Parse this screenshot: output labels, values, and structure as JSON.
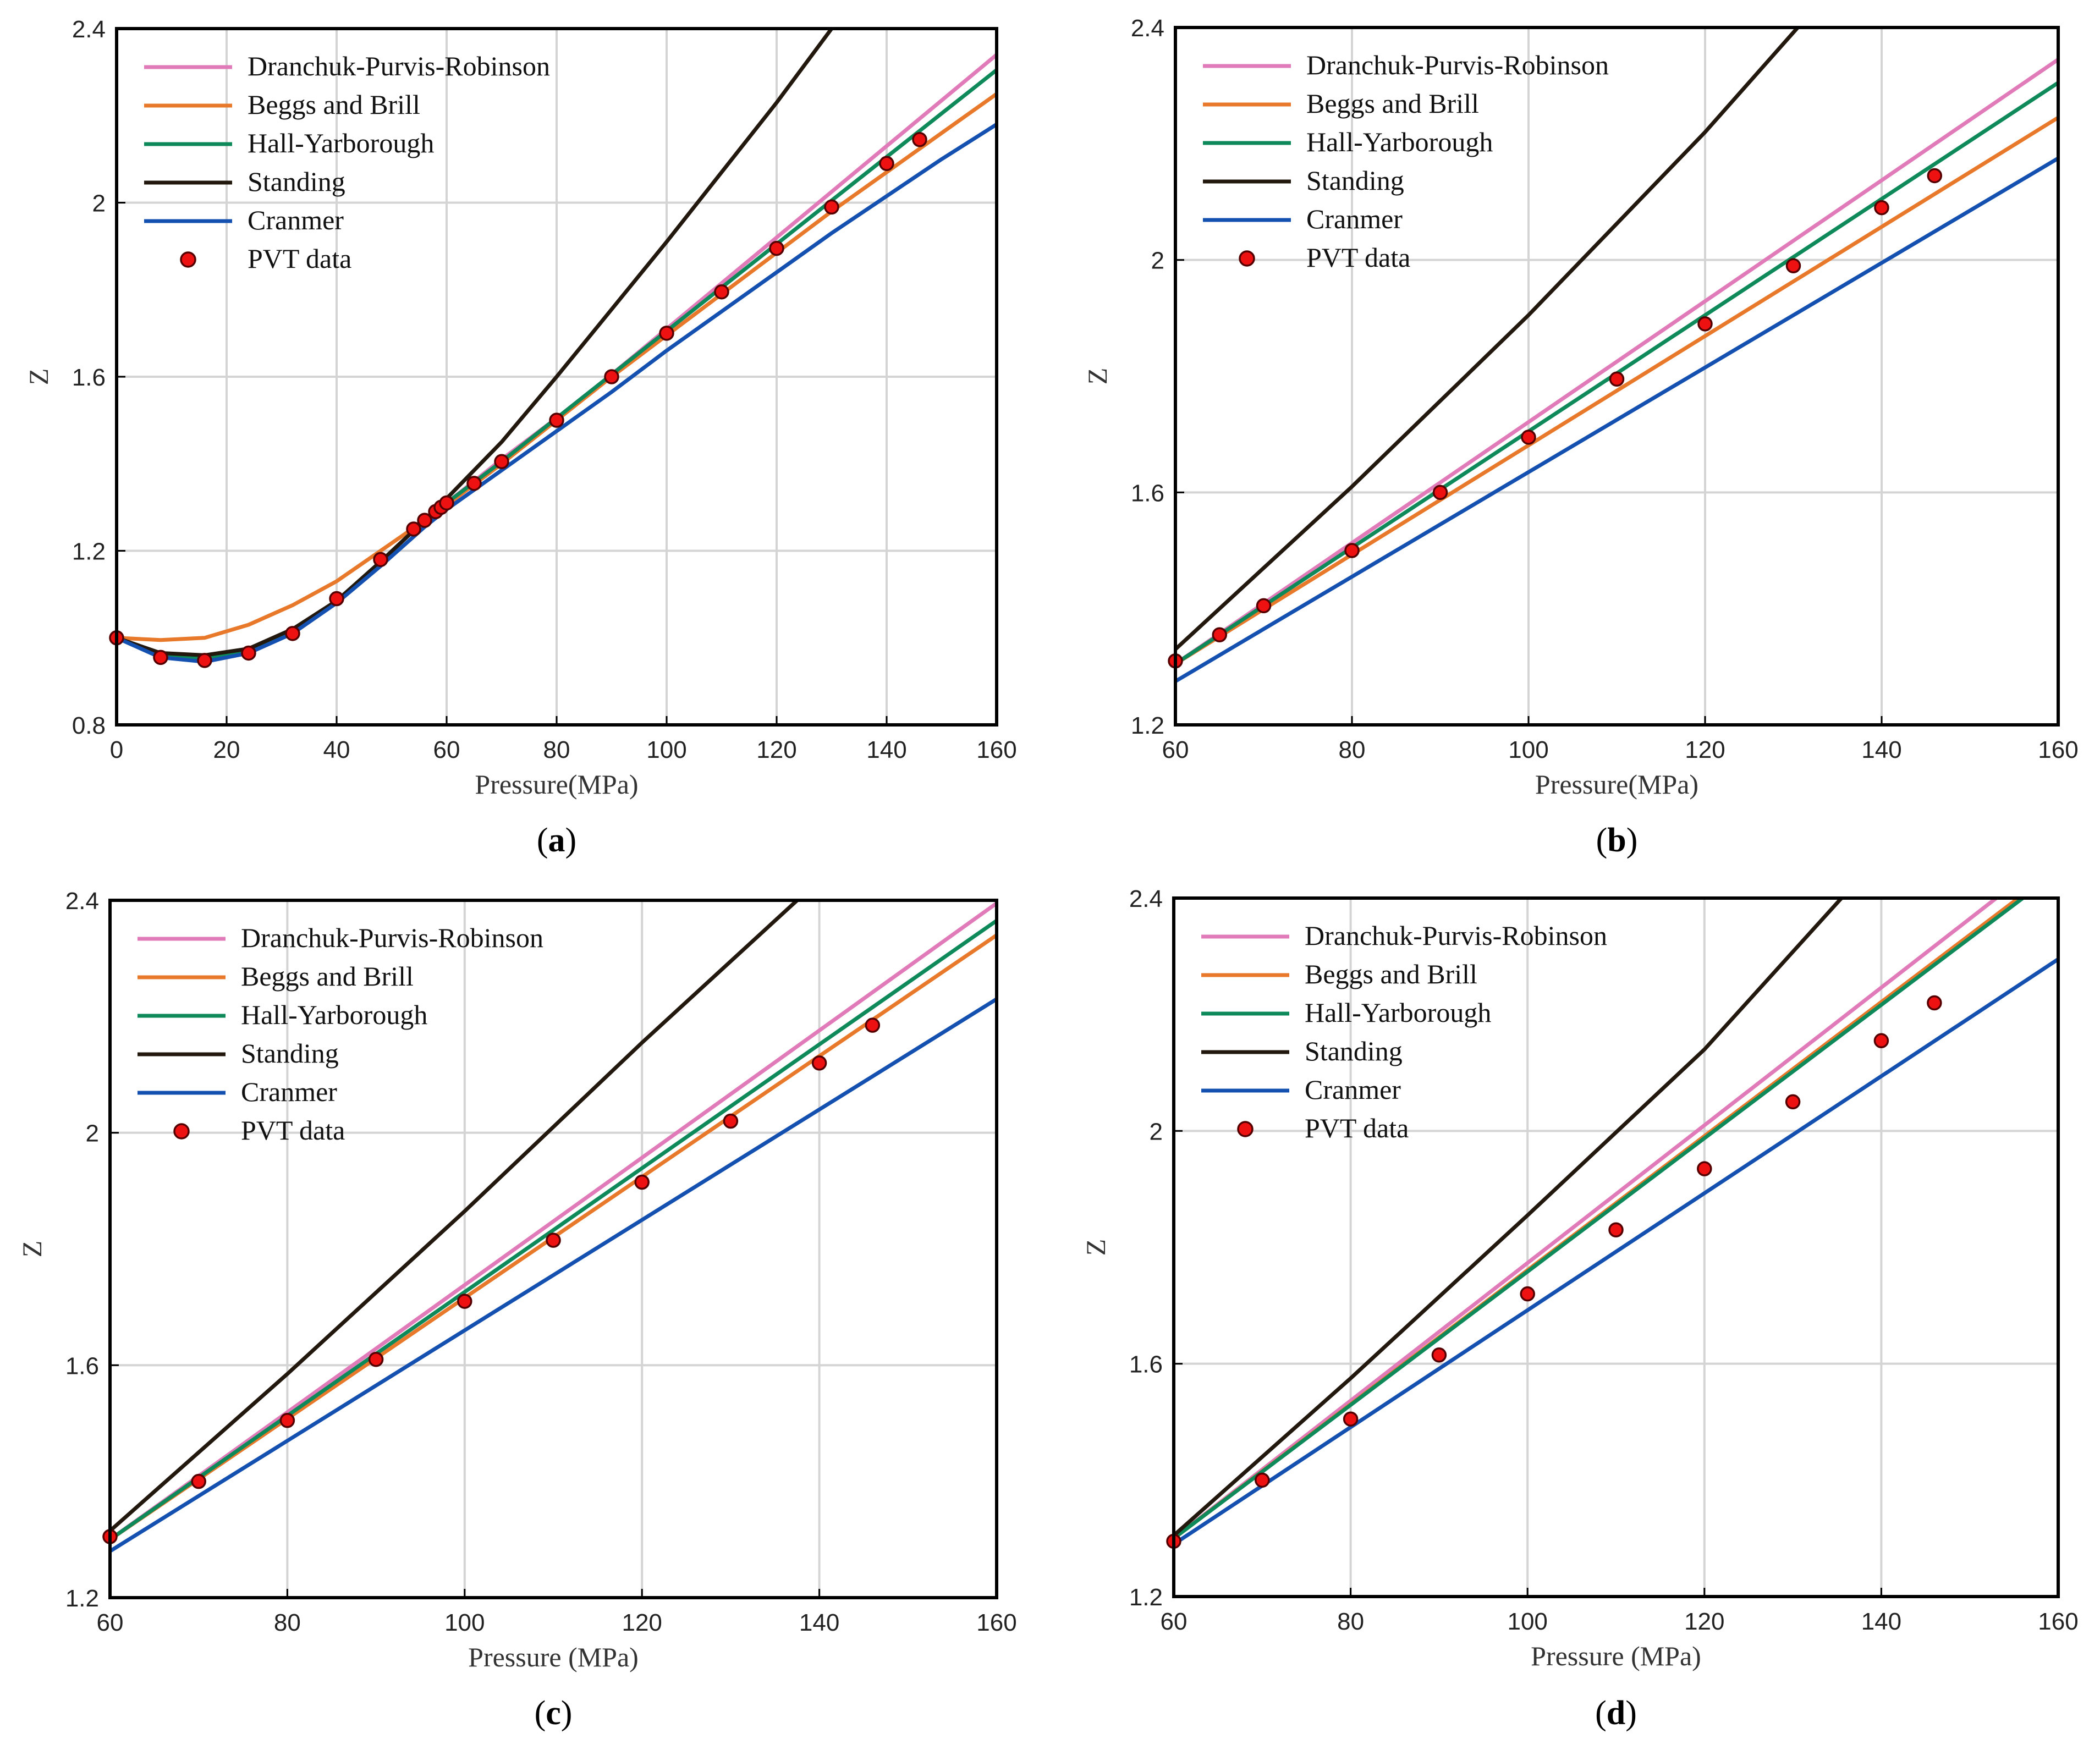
{
  "colors": {
    "Dranchuk-Purvis-Robinson": "#e07ab8",
    "Beggs and Brill": "#e8782a",
    "Hall-Yarborough": "#0e8a5a",
    "Standing": "#22180e",
    "Cranmer": "#1450b0",
    "marker_fill": "#ee1111",
    "marker_edge": "#550000",
    "grid": "#d4d4d4",
    "frame": "#000000"
  },
  "chart_data": [
    {
      "type": "line",
      "panel": "a",
      "caption_label": "a",
      "xlabel": "Pressure(MPa)",
      "ylabel": "Z",
      "xlim": [
        0,
        160
      ],
      "ylim": [
        0.8,
        2.4
      ],
      "xticks": [
        0,
        20,
        40,
        60,
        80,
        100,
        120,
        140,
        160
      ],
      "yticks": [
        0.8,
        1.2,
        1.6,
        2,
        2.4
      ],
      "xtick_labels": [
        "0",
        "20",
        "40",
        "60",
        "80",
        "100",
        "120",
        "140",
        "160"
      ],
      "ytick_labels": [
        "0.8",
        "1.2",
        "1.6",
        "2",
        "2.4"
      ],
      "grid": true,
      "legend_position": "top-left",
      "legend": [
        "Dranchuk-Purvis-Robinson",
        "Beggs and Brill",
        "Hall-Yarborough",
        "Standing",
        "Cranmer",
        "PVT data"
      ],
      "series": [
        {
          "name": "Dranchuk-Purvis-Robinson",
          "x": [
            0,
            8,
            16,
            24,
            32,
            40,
            48,
            56,
            60,
            70,
            80,
            90,
            100,
            110,
            120,
            130,
            140,
            150,
            160
          ],
          "y": [
            1.0,
            0.96,
            0.95,
            0.97,
            1.015,
            1.085,
            1.175,
            1.27,
            1.31,
            1.41,
            1.505,
            1.605,
            1.71,
            1.815,
            1.92,
            2.025,
            2.13,
            2.235,
            2.34
          ]
        },
        {
          "name": "Beggs and Brill",
          "x": [
            0,
            8,
            16,
            24,
            32,
            40,
            48,
            56,
            60,
            70,
            80,
            90,
            100,
            110,
            120,
            130,
            140,
            150,
            160
          ],
          "y": [
            1.0,
            0.995,
            1.0,
            1.03,
            1.075,
            1.13,
            1.2,
            1.27,
            1.305,
            1.4,
            1.5,
            1.6,
            1.695,
            1.79,
            1.885,
            1.98,
            2.07,
            2.16,
            2.25
          ]
        },
        {
          "name": "Hall-Yarborough",
          "x": [
            0,
            8,
            16,
            24,
            32,
            40,
            48,
            56,
            60,
            70,
            80,
            90,
            100,
            110,
            120,
            130,
            140,
            150,
            160
          ],
          "y": [
            1.0,
            0.96,
            0.952,
            0.972,
            1.015,
            1.085,
            1.175,
            1.27,
            1.31,
            1.405,
            1.505,
            1.605,
            1.705,
            1.805,
            1.905,
            2.005,
            2.105,
            2.205,
            2.305
          ]
        },
        {
          "name": "Standing",
          "x": [
            0,
            8,
            16,
            24,
            32,
            40,
            48,
            56,
            60,
            70,
            80,
            90,
            100,
            110,
            120,
            130,
            137.5
          ],
          "y": [
            1.0,
            0.965,
            0.96,
            0.975,
            1.02,
            1.085,
            1.175,
            1.27,
            1.32,
            1.45,
            1.6,
            1.755,
            1.91,
            2.07,
            2.23,
            2.4,
            2.52
          ]
        },
        {
          "name": "Cranmer",
          "x": [
            0,
            8,
            16,
            24,
            32,
            40,
            48,
            56,
            60,
            70,
            80,
            90,
            100,
            110,
            120,
            130,
            140,
            150,
            160
          ],
          "y": [
            1.0,
            0.955,
            0.945,
            0.965,
            1.01,
            1.08,
            1.165,
            1.255,
            1.295,
            1.385,
            1.475,
            1.565,
            1.66,
            1.75,
            1.84,
            1.93,
            2.015,
            2.1,
            2.18
          ]
        }
      ],
      "points": {
        "name": "PVT data",
        "x": [
          0,
          8,
          16,
          24,
          32,
          40,
          48,
          54,
          56,
          58,
          59,
          60,
          65,
          70,
          80,
          90,
          100,
          110,
          120,
          130,
          140,
          146
        ],
        "y": [
          1.0,
          0.955,
          0.948,
          0.965,
          1.01,
          1.09,
          1.18,
          1.25,
          1.27,
          1.29,
          1.3,
          1.31,
          1.355,
          1.405,
          1.5,
          1.6,
          1.7,
          1.795,
          1.895,
          1.99,
          2.09,
          2.145
        ]
      }
    },
    {
      "type": "line",
      "panel": "b",
      "caption_label": "b",
      "xlabel": "Pressure(MPa)",
      "ylabel": "Z",
      "xlim": [
        60,
        160
      ],
      "ylim": [
        1.2,
        2.4
      ],
      "xticks": [
        60,
        80,
        100,
        120,
        140,
        160
      ],
      "yticks": [
        1.2,
        1.6,
        2,
        2.4
      ],
      "xtick_labels": [
        "60",
        "80",
        "100",
        "120",
        "140",
        "160"
      ],
      "ytick_labels": [
        "1.2",
        "1.6",
        "2",
        "2.4"
      ],
      "grid": true,
      "legend_position": "top-left",
      "legend": [
        "Dranchuk-Purvis-Robinson",
        "Beggs and Brill",
        "Hall-Yarborough",
        "Standing",
        "Cranmer",
        "PVT data"
      ],
      "series": [
        {
          "name": "Dranchuk-Purvis-Robinson",
          "x": [
            60,
            160
          ],
          "y": [
            1.305,
            2.345
          ]
        },
        {
          "name": "Beggs and Brill",
          "x": [
            60,
            160
          ],
          "y": [
            1.305,
            2.245
          ]
        },
        {
          "name": "Hall-Yarborough",
          "x": [
            60,
            160
          ],
          "y": [
            1.305,
            2.305
          ]
        },
        {
          "name": "Standing",
          "x": [
            60,
            80,
            100,
            120,
            130.5
          ],
          "y": [
            1.33,
            1.61,
            1.905,
            2.22,
            2.4
          ]
        },
        {
          "name": "Cranmer",
          "x": [
            60,
            160
          ],
          "y": [
            1.275,
            2.175
          ]
        }
      ],
      "points": {
        "name": "PVT data",
        "x": [
          60,
          65,
          70,
          80,
          90,
          100,
          110,
          120,
          130,
          140,
          146
        ],
        "y": [
          1.31,
          1.355,
          1.405,
          1.5,
          1.6,
          1.695,
          1.795,
          1.89,
          1.99,
          2.09,
          2.145
        ]
      }
    },
    {
      "type": "line",
      "panel": "c",
      "caption_label": "c",
      "xlabel": "Pressure (MPa)",
      "ylabel": "Z",
      "xlim": [
        60,
        160
      ],
      "ylim": [
        1.2,
        2.4
      ],
      "xticks": [
        60,
        80,
        100,
        120,
        140,
        160
      ],
      "yticks": [
        1.2,
        1.6,
        2,
        2.4
      ],
      "xtick_labels": [
        "60",
        "80",
        "100",
        "120",
        "140",
        "160"
      ],
      "ytick_labels": [
        "1.2",
        "1.6",
        "2",
        "2.4"
      ],
      "grid": true,
      "legend_position": "top-left",
      "legend": [
        "Dranchuk-Purvis-Robinson",
        "Beggs and Brill",
        "Hall-Yarborough",
        "Standing",
        "Cranmer",
        "PVT data"
      ],
      "series": [
        {
          "name": "Dranchuk-Purvis-Robinson",
          "x": [
            60,
            160
          ],
          "y": [
            1.3,
            2.395
          ]
        },
        {
          "name": "Beggs and Brill",
          "x": [
            60,
            160
          ],
          "y": [
            1.3,
            2.34
          ]
        },
        {
          "name": "Hall-Yarborough",
          "x": [
            60,
            160
          ],
          "y": [
            1.3,
            2.365
          ]
        },
        {
          "name": "Standing",
          "x": [
            60,
            80,
            100,
            120,
            137.5
          ],
          "y": [
            1.315,
            1.585,
            1.865,
            2.155,
            2.4
          ]
        },
        {
          "name": "Cranmer",
          "x": [
            60,
            160
          ],
          "y": [
            1.28,
            2.23
          ]
        }
      ],
      "points": {
        "name": "PVT data",
        "x": [
          60,
          70,
          80,
          90,
          100,
          110,
          120,
          130,
          140,
          146
        ],
        "y": [
          1.305,
          1.4,
          1.505,
          1.61,
          1.71,
          1.815,
          1.915,
          2.02,
          2.12,
          2.185
        ]
      }
    },
    {
      "type": "line",
      "panel": "d",
      "caption_label": "d",
      "xlabel": "Pressure (MPa)",
      "ylabel": "Z",
      "xlim": [
        60,
        160
      ],
      "ylim": [
        1.2,
        2.4
      ],
      "xticks": [
        60,
        80,
        100,
        120,
        140,
        160
      ],
      "yticks": [
        1.2,
        1.6,
        2,
        2.4
      ],
      "xtick_labels": [
        "60",
        "80",
        "100",
        "120",
        "140",
        "160"
      ],
      "ytick_labels": [
        "1.2",
        "1.6",
        "2",
        "2.4"
      ],
      "grid": true,
      "legend_position": "top-left",
      "legend": [
        "Dranchuk-Purvis-Robinson",
        "Beggs and Brill",
        "Hall-Yarborough",
        "Standing",
        "Cranmer",
        "PVT data"
      ],
      "series": [
        {
          "name": "Dranchuk-Purvis-Robinson",
          "x": [
            60,
            153
          ],
          "y": [
            1.3,
            2.4
          ]
        },
        {
          "name": "Beggs and Brill",
          "x": [
            60,
            155.5
          ],
          "y": [
            1.3,
            2.4
          ]
        },
        {
          "name": "Hall-Yarborough",
          "x": [
            60,
            156
          ],
          "y": [
            1.3,
            2.4
          ]
        },
        {
          "name": "Standing",
          "x": [
            60,
            80,
            100,
            120,
            135.5
          ],
          "y": [
            1.305,
            1.575,
            1.855,
            2.14,
            2.4
          ]
        },
        {
          "name": "Cranmer",
          "x": [
            60,
            160
          ],
          "y": [
            1.29,
            2.295
          ]
        }
      ],
      "points": {
        "name": "PVT data",
        "x": [
          60,
          70,
          80,
          90,
          100,
          110,
          120,
          130,
          140,
          146
        ],
        "y": [
          1.295,
          1.4,
          1.505,
          1.615,
          1.72,
          1.83,
          1.935,
          2.05,
          2.155,
          2.22
        ]
      }
    }
  ]
}
